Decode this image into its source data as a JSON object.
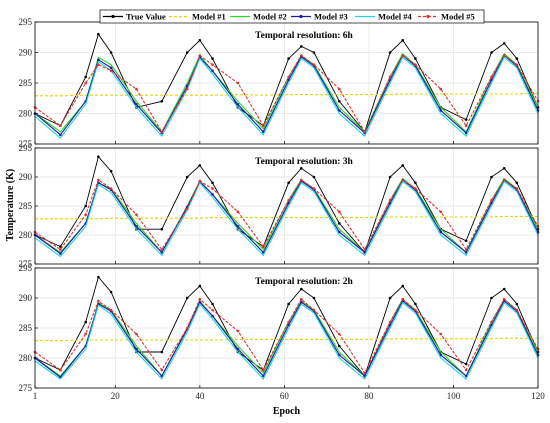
{
  "chart_data": {
    "type": "line",
    "ylabel": "Temperature (K)",
    "xlabel": "Epoch",
    "xlim": [
      1,
      120
    ],
    "ylim": [
      275,
      295
    ],
    "xticks": [
      "1",
      "20",
      "40",
      "60",
      "80",
      "100",
      "120"
    ],
    "yticks": [
      "275",
      "280",
      "285",
      "290",
      "295"
    ],
    "grid": true,
    "legend_position": "top",
    "legend": [
      {
        "name": "True Value",
        "color": "#000000",
        "marker": "dot"
      },
      {
        "name": "Model #1",
        "color": "#e6d400",
        "marker": "none"
      },
      {
        "name": "Model #2",
        "color": "#2bd42b",
        "marker": "none"
      },
      {
        "name": "Model #3",
        "color": "#1a1aa8",
        "marker": "dot"
      },
      {
        "name": "Model #4",
        "color": "#1fd4e0",
        "marker": "none"
      },
      {
        "name": "Model #5",
        "color": "#e03030",
        "marker": "dot"
      }
    ],
    "panels": [
      {
        "title": "Temporal resolution: 6h",
        "x": [
          1,
          7,
          13,
          16,
          19,
          25,
          31,
          37,
          40,
          43,
          49,
          55,
          61,
          64,
          67,
          73,
          79,
          85,
          88,
          91,
          97,
          103,
          109,
          112,
          115,
          120
        ],
        "series": [
          {
            "name": "True Value",
            "values": [
              280,
              278,
              286,
              293,
              290,
              281,
              282,
              290,
              292,
              289,
              281,
              278,
              289,
              291,
              290,
              282,
              277,
              290,
              292,
              289,
              281,
              279,
              290,
              291.5,
              289,
              281
            ]
          },
          {
            "name": "Model #1",
            "values": [
              282.9,
              282.9,
              283,
              283,
              283,
              283,
              283,
              283,
              283,
              283,
              283.1,
              283,
              283.1,
              283.1,
              283.1,
              283.1,
              283.1,
              283.1,
              283.2,
              283.2,
              283.2,
              283.2,
              283.2,
              283.2,
              283.2,
              283.3
            ]
          },
          {
            "name": "Model #2",
            "values": [
              280,
              277,
              282,
              289.2,
              288,
              282,
              277,
              285,
              289.5,
              287,
              282,
              277.5,
              286,
              289.5,
              288,
              281,
              277,
              286,
              289.8,
              288,
              281,
              277,
              286,
              289.8,
              288,
              281
            ]
          },
          {
            "name": "Model #3",
            "values": [
              280,
              276.5,
              282,
              288.8,
              287.5,
              281.5,
              276.8,
              284.5,
              289.2,
              287,
              281.5,
              277,
              285.5,
              289.3,
              287.8,
              280.5,
              276.8,
              285.5,
              289.5,
              287.8,
              280.5,
              276.8,
              285.5,
              289.5,
              287.8,
              280.5
            ]
          },
          {
            "name": "Model #4",
            "values": [
              279.5,
              276,
              281.5,
              288.5,
              287,
              281,
              276.3,
              284,
              289,
              286.5,
              281,
              276.5,
              285,
              289,
              287.5,
              280,
              276.3,
              285,
              289.2,
              287.5,
              280,
              276.3,
              285,
              289.2,
              287.5,
              280
            ]
          },
          {
            "name": "Model #5",
            "values": [
              281,
              278,
              285,
              288,
              287,
              284,
              277,
              284,
              289.5,
              288,
              285,
              278,
              286,
              289.5,
              288,
              284,
              277,
              286,
              289.5,
              288,
              284,
              278,
              286,
              289.5,
              288,
              282
            ]
          }
        ]
      },
      {
        "title": "Temporal resolution: 3h",
        "x": [
          1,
          7,
          13,
          16,
          19,
          25,
          31,
          37,
          40,
          43,
          49,
          55,
          61,
          64,
          67,
          73,
          79,
          85,
          88,
          91,
          97,
          103,
          109,
          112,
          115,
          120
        ],
        "series": [
          {
            "name": "True Value",
            "values": [
              280,
              278,
              285,
              293.5,
              291,
              281,
              281,
              290,
              292,
              289,
              281,
              278,
              289,
              291.5,
              290,
              282,
              277,
              290,
              292,
              289,
              281,
              279,
              290,
              291.5,
              289,
              281
            ]
          },
          {
            "name": "Model #1",
            "values": [
              282.8,
              282.8,
              282.8,
              282.8,
              282.9,
              282.9,
              282.9,
              282.9,
              282.9,
              283,
              283,
              283,
              283,
              283,
              283,
              283,
              283,
              283.1,
              283.1,
              283.1,
              283.1,
              283.1,
              283.1,
              283.2,
              283.2,
              283.2
            ]
          },
          {
            "name": "Model #2",
            "values": [
              280,
              277,
              282,
              289,
              288,
              282,
              277,
              285,
              289.3,
              287,
              282,
              277.5,
              286,
              289.5,
              288,
              281,
              277,
              286,
              289.7,
              288,
              281,
              277,
              286,
              289.7,
              288,
              281
            ]
          },
          {
            "name": "Model #3",
            "values": [
              280,
              276.8,
              282,
              289,
              287.8,
              281.5,
              277,
              284.8,
              289.2,
              287,
              281.5,
              277,
              285.5,
              289.3,
              287.8,
              280.5,
              277,
              285.5,
              289.5,
              287.8,
              280.5,
              277,
              285.5,
              289.5,
              287.8,
              280.5
            ]
          },
          {
            "name": "Model #4",
            "values": [
              279.5,
              276.3,
              281.5,
              288.7,
              287.3,
              281,
              276.5,
              284.3,
              289,
              286.5,
              281,
              276.5,
              285,
              289,
              287.5,
              280,
              276.5,
              285,
              289.2,
              287.5,
              280,
              276.5,
              285,
              289.2,
              287.5,
              280
            ]
          },
          {
            "name": "Model #5",
            "values": [
              280.5,
              277.5,
              283.5,
              289.5,
              288,
              283.5,
              277.5,
              284.5,
              289.3,
              288,
              284,
              278,
              286,
              289.5,
              288,
              284,
              277.5,
              286,
              289.5,
              288,
              284,
              277.5,
              286,
              289.5,
              288,
              281.5
            ]
          }
        ]
      },
      {
        "title": "Temporal resolution: 2h",
        "x": [
          1,
          7,
          13,
          16,
          19,
          25,
          31,
          37,
          40,
          43,
          49,
          55,
          61,
          64,
          67,
          73,
          79,
          85,
          88,
          91,
          97,
          103,
          109,
          112,
          115,
          120
        ],
        "series": [
          {
            "name": "True Value",
            "values": [
              280,
              278,
              286,
              293.5,
              291,
              281,
              281,
              290,
              292,
              289,
              281,
              278,
              289,
              291.5,
              290,
              282,
              277,
              290,
              292,
              289,
              281,
              279,
              290,
              291.5,
              289,
              281
            ]
          },
          {
            "name": "Model #1",
            "values": [
              282.9,
              282.9,
              283,
              283,
              283,
              283,
              283,
              283,
              283,
              283,
              283.1,
              283.1,
              283.1,
              283.1,
              283.1,
              283.1,
              283.1,
              283.2,
              283.2,
              283.2,
              283.2,
              283.2,
              283.2,
              283.3,
              283.3,
              283.3
            ]
          },
          {
            "name": "Model #2",
            "values": [
              280,
              277,
              282,
              289.2,
              288,
              282,
              277,
              285,
              289.5,
              287,
              282,
              277.5,
              286,
              289.5,
              288,
              281,
              277,
              286,
              289.8,
              288,
              281,
              277,
              286,
              289.8,
              288,
              281
            ]
          },
          {
            "name": "Model #3",
            "values": [
              280,
              276.8,
              282,
              289,
              287.8,
              281.5,
              277,
              284.8,
              289.3,
              287,
              281.5,
              277,
              285.5,
              289.3,
              287.8,
              280.5,
              277,
              285.5,
              289.5,
              287.8,
              280.5,
              277,
              285.5,
              289.5,
              287.8,
              280.5
            ]
          },
          {
            "name": "Model #4",
            "values": [
              279.5,
              276.5,
              281.5,
              288.8,
              287.3,
              281,
              276.5,
              284.3,
              289,
              286.5,
              281,
              276.5,
              285,
              289,
              287.5,
              280,
              276.5,
              285,
              289.2,
              287.5,
              280,
              276.5,
              285,
              289.2,
              287.5,
              280
            ]
          },
          {
            "name": "Model #5",
            "values": [
              281,
              278,
              284,
              289.5,
              288,
              284,
              278,
              285,
              289.8,
              288,
              284.5,
              278,
              286,
              289.8,
              288,
              284,
              277.5,
              286,
              289.8,
              288,
              284,
              278,
              286,
              289.8,
              288,
              281.5
            ]
          }
        ]
      }
    ]
  }
}
